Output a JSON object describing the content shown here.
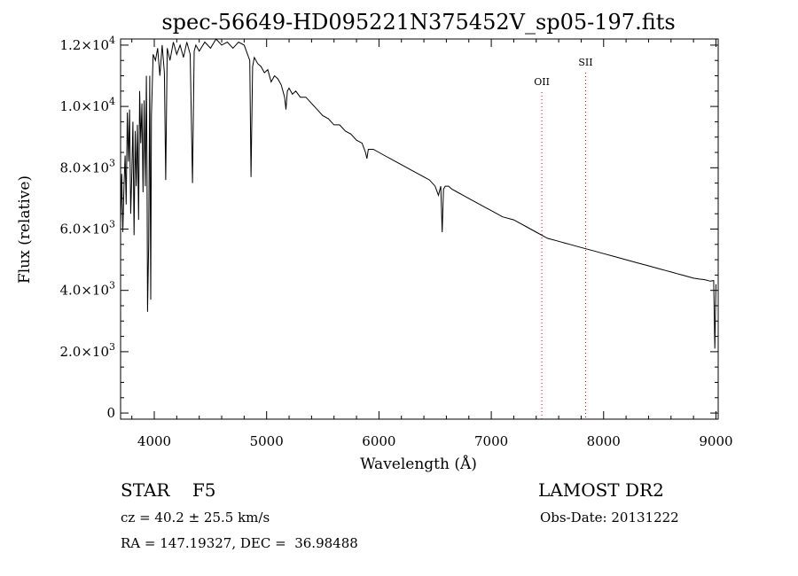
{
  "chart_data": {
    "type": "line",
    "title": "spec-56649-HD095221N375452V_sp05-197.fits",
    "xlabel": "Wavelength (Å)",
    "ylabel": "Flux (relative)",
    "xlim": [
      3700,
      9020
    ],
    "ylim": [
      -200,
      12200
    ],
    "xticks": [
      {
        "value": 4000,
        "label": "4000"
      },
      {
        "value": 5000,
        "label": "5000"
      },
      {
        "value": 6000,
        "label": "6000"
      },
      {
        "value": 7000,
        "label": "7000"
      },
      {
        "value": 8000,
        "label": "8000"
      },
      {
        "value": 9000,
        "label": "9000"
      }
    ],
    "yticks": [
      {
        "value": 0,
        "mant": "0",
        "exp": ""
      },
      {
        "value": 2000,
        "mant": "2.0×10",
        "exp": "3"
      },
      {
        "value": 4000,
        "mant": "4.0×10",
        "exp": "3"
      },
      {
        "value": 6000,
        "mant": "6.0×10",
        "exp": "3"
      },
      {
        "value": 8000,
        "mant": "8.0×10",
        "exp": "3"
      },
      {
        "value": 10000,
        "mant": "1.0×10",
        "exp": "4"
      },
      {
        "value": 12000,
        "mant": "1.2×10",
        "exp": "4"
      }
    ],
    "line_markers": [
      {
        "label": "OII",
        "x": 7450
      },
      {
        "label": "SII",
        "x": 7840
      }
    ],
    "series": [
      {
        "x": [
          3700,
          3710,
          3720,
          3730,
          3740,
          3750,
          3760,
          3770,
          3780,
          3790,
          3800,
          3810,
          3820,
          3830,
          3840,
          3850,
          3860,
          3870,
          3880,
          3890,
          3900,
          3910,
          3920,
          3930,
          3935,
          3940,
          3950,
          3960,
          3968,
          3975,
          3990,
          4010,
          4030,
          4050,
          4070,
          4090,
          4102,
          4115,
          4140,
          4170,
          4200,
          4230,
          4260,
          4290,
          4320,
          4340,
          4355,
          4370,
          4400,
          4450,
          4500,
          4550,
          4600,
          4650,
          4700,
          4750,
          4800,
          4830,
          4850,
          4861,
          4875,
          4890,
          4920,
          4950,
          4980,
          5010,
          5040,
          5070,
          5100,
          5130,
          5160,
          5172,
          5185,
          5200,
          5230,
          5260,
          5300,
          5350,
          5400,
          5450,
          5500,
          5550,
          5600,
          5650,
          5700,
          5750,
          5800,
          5850,
          5880,
          5893,
          5905,
          5950,
          6000,
          6050,
          6100,
          6150,
          6200,
          6250,
          6300,
          6350,
          6400,
          6450,
          6500,
          6530,
          6550,
          6563,
          6575,
          6590,
          6620,
          6650,
          6700,
          6750,
          6800,
          6850,
          6900,
          6950,
          7000,
          7100,
          7200,
          7300,
          7400,
          7500,
          7600,
          7650,
          7700,
          7800,
          7900,
          8000,
          8100,
          8200,
          8300,
          8400,
          8500,
          8550,
          8600,
          8650,
          8700,
          8750,
          8800,
          8850,
          8900,
          8950,
          8980,
          8990,
          9000
        ],
        "y": [
          6200,
          7800,
          5900,
          7400,
          8400,
          6800,
          9800,
          8200,
          9900,
          6500,
          7800,
          9500,
          5800,
          9200,
          7400,
          9400,
          6300,
          10500,
          8800,
          10100,
          7200,
          10200,
          7400,
          11000,
          8000,
          3300,
          5500,
          11000,
          3700,
          9700,
          11700,
          11500,
          11900,
          11000,
          12000,
          11100,
          7600,
          11900,
          11500,
          12100,
          11700,
          12000,
          11600,
          12100,
          11700,
          7500,
          11800,
          12000,
          11800,
          12100,
          11900,
          12200,
          12000,
          12100,
          11900,
          12100,
          12000,
          11700,
          11500,
          7700,
          11300,
          11600,
          11400,
          11300,
          11100,
          11200,
          10800,
          11000,
          10900,
          10700,
          10300,
          9900,
          10500,
          10600,
          10400,
          10500,
          10300,
          10300,
          10100,
          9900,
          9700,
          9600,
          9400,
          9400,
          9200,
          9100,
          8900,
          8800,
          8500,
          8300,
          8600,
          8600,
          8500,
          8400,
          8300,
          8200,
          8100,
          8000,
          7900,
          7800,
          7700,
          7600,
          7400,
          7100,
          7400,
          5900,
          7300,
          7400,
          7400,
          7300,
          7200,
          7100,
          7000,
          6900,
          6800,
          6700,
          6600,
          6400,
          6300,
          6100,
          5900,
          5700,
          5600,
          5550,
          5500,
          5400,
          5300,
          5200,
          5100,
          5000,
          4900,
          4800,
          4700,
          4650,
          4600,
          4550,
          4500,
          4450,
          4400,
          4370,
          4350,
          4300,
          4320,
          2100,
          4200
        ]
      }
    ]
  },
  "info": {
    "object": "STAR    F5",
    "survey": "LAMOST DR2",
    "cz": "cz = 40.2 ± 25.5 km/s",
    "obsdate": "Obs-Date: 20131222",
    "radec": "RA = 147.19327, DEC =  36.98488"
  }
}
